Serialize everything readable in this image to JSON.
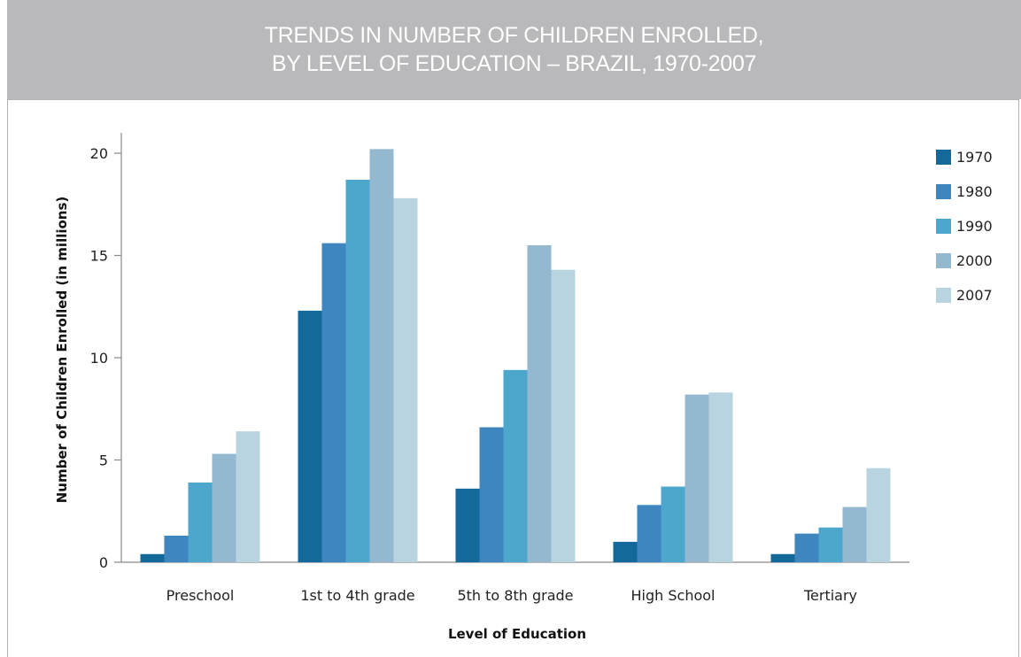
{
  "header": {
    "title_line1": "TRENDS IN NUMBER OF CHILDREN ENROLLED,",
    "title_line2": "BY LEVEL OF EDUCATION – BRAZIL, 1970-2007"
  },
  "colors": {
    "header_bg": "#b9b9bb",
    "series": [
      "#14699b",
      "#3d86c0",
      "#4da6cb",
      "#94b8d0",
      "#b9d4e1"
    ]
  },
  "chart_data": {
    "type": "bar",
    "title": "TRENDS IN NUMBER OF CHILDREN ENROLLED, BY LEVEL OF EDUCATION – BRAZIL, 1970-2007",
    "xlabel": "Level of Education",
    "ylabel": "Number of Children Enrolled  (in millions)",
    "ylim": [
      0,
      20
    ],
    "yticks": [
      0,
      5,
      10,
      15,
      20
    ],
    "grid": false,
    "legend_position": "right",
    "categories": [
      "Preschool",
      "1st to 4th grade",
      "5th to 8th grade",
      "High School",
      "Tertiary"
    ],
    "series": [
      {
        "name": "1970",
        "values": [
          0.4,
          12.3,
          3.6,
          1.0,
          0.4
        ]
      },
      {
        "name": "1980",
        "values": [
          1.3,
          15.6,
          6.6,
          2.8,
          1.4
        ]
      },
      {
        "name": "1990",
        "values": [
          3.9,
          18.7,
          9.4,
          3.7,
          1.7
        ]
      },
      {
        "name": "2000",
        "values": [
          5.3,
          20.2,
          15.5,
          8.2,
          2.7
        ]
      },
      {
        "name": "2007",
        "values": [
          6.4,
          17.8,
          14.3,
          8.3,
          4.6
        ]
      }
    ]
  }
}
